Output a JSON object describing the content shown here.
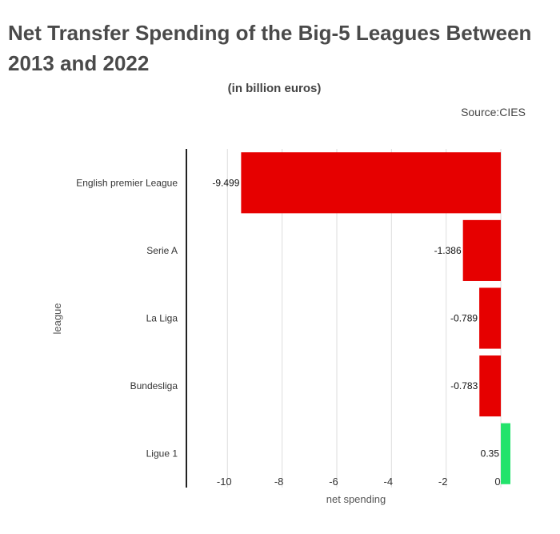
{
  "header": {
    "title": "Net Transfer Spending of the Big-5 Leagues Between 2013 and 2022",
    "subtitle": "(in billion euros)",
    "source": "Source:CIES"
  },
  "chart_data": {
    "type": "bar",
    "orientation": "horizontal",
    "categories": [
      "English premier League",
      "Serie A",
      "La Liga",
      "Bundesliga",
      "Ligue 1"
    ],
    "values": [
      -9.499,
      -1.386,
      -0.789,
      -0.783,
      0.35
    ],
    "data_labels": [
      "-9.499",
      "-1.386",
      "-0.789",
      "-0.783",
      "0.35"
    ],
    "xlabel": "net spending",
    "ylabel": "league",
    "xlim": [
      -11.5,
      0.35
    ],
    "xticks": [
      -10,
      -8,
      -6,
      -4,
      -2,
      0
    ],
    "xtick_labels": [
      "-10",
      "-8",
      "-6",
      "-4",
      "-2",
      "0"
    ],
    "grid": true,
    "colors": {
      "negative": "#e60000",
      "positive": "#22e36b",
      "grid": "#dddddd",
      "axis": "#222222"
    }
  }
}
